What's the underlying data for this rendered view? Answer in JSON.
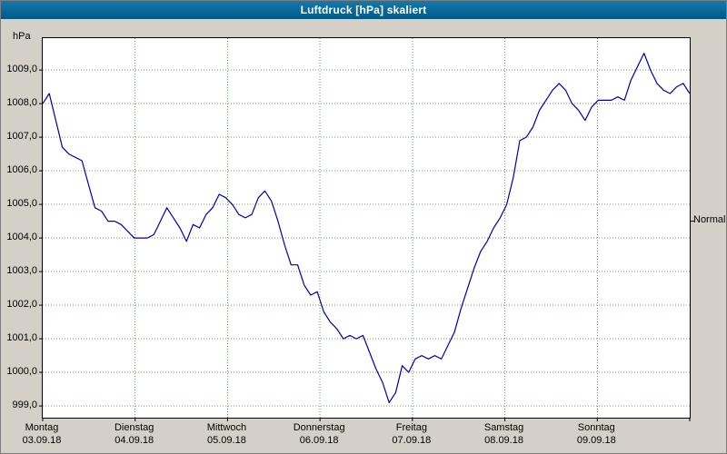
{
  "chart_data": {
    "type": "line",
    "title": "Luftdruck [hPa] skaliert",
    "y_unit": "hPa",
    "xlabel": "",
    "ylabel": "hPa",
    "ylim": [
      998.65,
      1009.95
    ],
    "grid": true,
    "legend_position": "none",
    "line_color": "#0000a0",
    "grid_color": "#6f9b6f",
    "y_ticks": [
      {
        "value": 1009,
        "label": "1009,0"
      },
      {
        "value": 1008,
        "label": "1008,0"
      },
      {
        "value": 1007,
        "label": "1007,0"
      },
      {
        "value": 1006,
        "label": "1006,0"
      },
      {
        "value": 1005,
        "label": "1005,0"
      },
      {
        "value": 1004,
        "label": "1004,0"
      },
      {
        "value": 1003,
        "label": "1003,0"
      },
      {
        "value": 1002,
        "label": "1002,0"
      },
      {
        "value": 1001,
        "label": "1001,0"
      },
      {
        "value": 1000,
        "label": "1000,0"
      },
      {
        "value": 999,
        "label": "999,0"
      }
    ],
    "days": [
      {
        "name": "Montag",
        "date": "03.09.18"
      },
      {
        "name": "Dienstag",
        "date": "04.09.18"
      },
      {
        "name": "Mittwoch",
        "date": "05.09.18"
      },
      {
        "name": "Donnerstag",
        "date": "06.09.18"
      },
      {
        "name": "Freitag",
        "date": "07.09.18"
      },
      {
        "name": "Samstag",
        "date": "08.09.18"
      },
      {
        "name": "Sonntag",
        "date": "09.09.18"
      }
    ],
    "normal": {
      "label": "Normal",
      "value": 1004.5
    },
    "series": [
      {
        "name": "Luftdruck",
        "unit": "hPa",
        "values": [
          1008.0,
          1008.3,
          1007.5,
          1006.7,
          1006.5,
          1006.4,
          1006.3,
          1005.6,
          1004.9,
          1004.8,
          1004.5,
          1004.5,
          1004.4,
          1004.2,
          1004.0,
          1004.0,
          1004.0,
          1004.1,
          1004.5,
          1004.9,
          1004.6,
          1004.3,
          1003.9,
          1004.4,
          1004.3,
          1004.7,
          1004.9,
          1005.3,
          1005.2,
          1005.0,
          1004.7,
          1004.6,
          1004.7,
          1005.2,
          1005.4,
          1005.1,
          1004.5,
          1003.8,
          1003.2,
          1003.2,
          1002.6,
          1002.3,
          1002.4,
          1001.8,
          1001.5,
          1001.3,
          1001.0,
          1001.1,
          1001.0,
          1001.1,
          1000.6,
          1000.1,
          999.7,
          999.1,
          999.4,
          1000.2,
          1000.0,
          1000.4,
          1000.5,
          1000.4,
          1000.5,
          1000.4,
          1000.8,
          1001.2,
          1001.9,
          1002.5,
          1003.1,
          1003.6,
          1003.9,
          1004.3,
          1004.6,
          1005.0,
          1005.8,
          1006.9,
          1007.0,
          1007.3,
          1007.8,
          1008.1,
          1008.4,
          1008.6,
          1008.4,
          1008.0,
          1007.8,
          1007.5,
          1007.9,
          1008.1,
          1008.1,
          1008.1,
          1008.2,
          1008.1,
          1008.7,
          1009.1,
          1009.5,
          1009.0,
          1008.6,
          1008.4,
          1008.3,
          1008.5,
          1008.6,
          1008.3
        ]
      }
    ]
  }
}
